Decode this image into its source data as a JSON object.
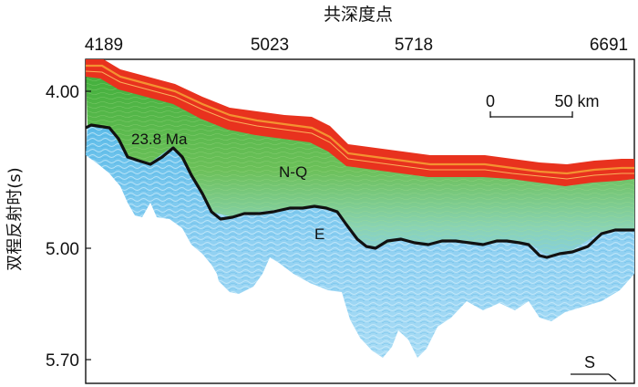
{
  "figure": {
    "x_axis": {
      "title": "共深度点",
      "ticks": [
        "4189",
        "5023",
        "5718",
        "6691"
      ]
    },
    "y_axis": {
      "title": "双程反射时(s)",
      "ticks": [
        "4.00",
        "5.00",
        "5.70"
      ]
    },
    "annotations": {
      "horizon_age": "23.8 Ma",
      "upper_unit": "N-Q",
      "lower_unit": "E",
      "direction": "S"
    },
    "scale_bar": {
      "start_label": "0",
      "end_label": "50 km"
    },
    "colors": {
      "seafloor_red": "#e8321e",
      "seafloor_orange": "#f39a2a",
      "nq_green": "#5cb54a",
      "transition_teal": "#7fd3c2",
      "e_blue": "#7cc8ef",
      "horizon_black": "#111111"
    }
  }
}
